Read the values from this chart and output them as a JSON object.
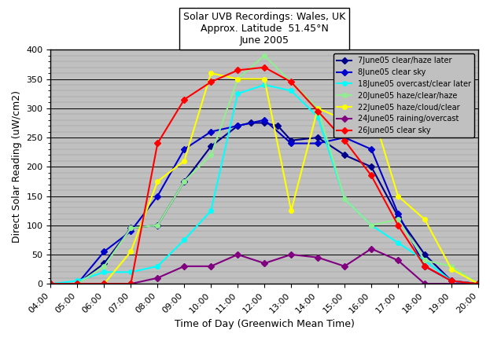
{
  "title_line1": "Solar UVB Recordings: Wales, UK",
  "title_line2": "Approx. Latitude  51.45°N",
  "title_line3": "June 2005",
  "xlabel": "Time of Day (Greenwich Mean Time)",
  "ylabel": "Direct Solar Reading (uW/cm2)",
  "ylim": [
    0,
    400
  ],
  "yticks": [
    0,
    50,
    100,
    150,
    200,
    250,
    300,
    350,
    400
  ],
  "xtick_vals": [
    4,
    5,
    6,
    7,
    8,
    9,
    10,
    11,
    12,
    13,
    14,
    15,
    16,
    17,
    18,
    19,
    20
  ],
  "xtick_labels": [
    "04:00",
    "05:00",
    "06:00",
    "07:00",
    "08:00",
    "09:00",
    "10:00",
    "11:00",
    "12:00",
    "13:00",
    "14:00",
    "15:00",
    "16:00",
    "17:00",
    "18:00",
    "19:00",
    "20:00"
  ],
  "background_color": "#c0c0c0",
  "series": [
    {
      "label": "7June05 clear/haze later",
      "color": "#00008B",
      "marker": "D",
      "markersize": 4,
      "linewidth": 1.5,
      "x": [
        4,
        5,
        6,
        7,
        8,
        9,
        10,
        11,
        11.5,
        12,
        12.5,
        13,
        14,
        15,
        16,
        17,
        18,
        19,
        20
      ],
      "y": [
        0,
        0,
        35,
        95,
        100,
        175,
        235,
        270,
        275,
        275,
        270,
        245,
        250,
        220,
        200,
        115,
        50,
        5,
        0
      ]
    },
    {
      "label": "8June05 clear sky",
      "color": "#0000CD",
      "marker": "D",
      "markersize": 4,
      "linewidth": 1.5,
      "x": [
        4,
        5,
        6,
        7,
        8,
        9,
        10,
        11,
        12,
        13,
        14,
        15,
        16,
        17,
        18,
        19,
        20
      ],
      "y": [
        0,
        0,
        55,
        90,
        150,
        230,
        260,
        270,
        280,
        240,
        240,
        250,
        230,
        120,
        30,
        5,
        0
      ]
    },
    {
      "label": "18June05 overcast/clear later",
      "color": "#00FFFF",
      "marker": "o",
      "markersize": 4,
      "linewidth": 1.5,
      "x": [
        4,
        5,
        6,
        7,
        8,
        9,
        10,
        11,
        12,
        13,
        14,
        15,
        16,
        17,
        18,
        19,
        20
      ],
      "y": [
        0,
        5,
        20,
        20,
        30,
        75,
        125,
        325,
        340,
        330,
        285,
        145,
        100,
        70,
        40,
        5,
        0
      ]
    },
    {
      "label": "20June05 haze/clear/haze",
      "color": "#90EE90",
      "marker": "o",
      "markersize": 4,
      "linewidth": 1.5,
      "x": [
        4,
        5,
        6,
        7,
        8,
        9,
        10,
        11,
        12,
        13,
        14,
        15,
        16,
        17,
        18,
        19,
        20
      ],
      "y": [
        0,
        0,
        30,
        95,
        100,
        175,
        220,
        350,
        390,
        345,
        300,
        145,
        100,
        110,
        40,
        30,
        0
      ]
    },
    {
      "label": "22June05 haze/cloud/clear",
      "color": "#FFFF00",
      "marker": "o",
      "markersize": 4,
      "linewidth": 1.5,
      "x": [
        4,
        5,
        6,
        7,
        8,
        9,
        10,
        11,
        12,
        13,
        14,
        15,
        16,
        17,
        18,
        19,
        20
      ],
      "y": [
        0,
        0,
        0,
        55,
        175,
        210,
        360,
        350,
        350,
        125,
        300,
        280,
        300,
        150,
        110,
        25,
        0
      ]
    },
    {
      "label": "24June05 raining/overcast",
      "color": "#800080",
      "marker": "D",
      "markersize": 4,
      "linewidth": 1.5,
      "x": [
        4,
        5,
        6,
        7,
        8,
        9,
        10,
        11,
        12,
        13,
        14,
        15,
        16,
        17,
        18,
        19,
        20
      ],
      "y": [
        0,
        0,
        0,
        0,
        10,
        30,
        30,
        50,
        35,
        50,
        45,
        30,
        60,
        40,
        0,
        0,
        0
      ]
    },
    {
      "label": "26June05 clear sky",
      "color": "#FF0000",
      "marker": "D",
      "markersize": 4,
      "linewidth": 1.5,
      "x": [
        4,
        5,
        6,
        7,
        8,
        9,
        10,
        11,
        12,
        13,
        14,
        15,
        16,
        17,
        18,
        19,
        20
      ],
      "y": [
        0,
        0,
        0,
        0,
        240,
        315,
        345,
        365,
        370,
        345,
        295,
        245,
        185,
        100,
        30,
        5,
        0
      ]
    }
  ]
}
